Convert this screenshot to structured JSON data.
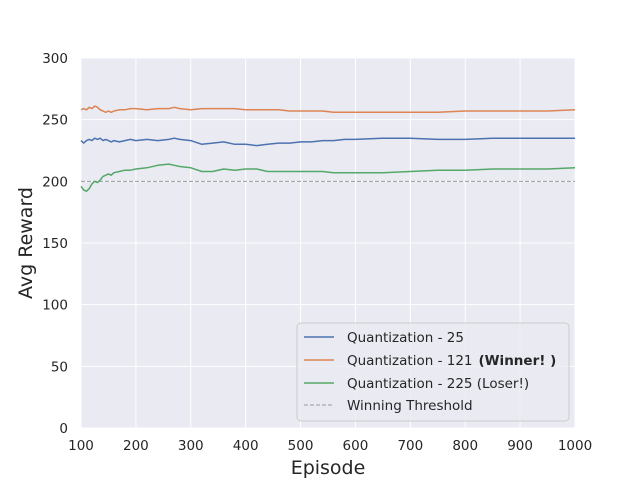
{
  "chart_data": {
    "type": "line",
    "title": "",
    "xlabel": "Episode",
    "ylabel": "Avg Reward",
    "xlim": [
      100,
      1000
    ],
    "ylim": [
      0,
      300
    ],
    "xticks": [
      100,
      200,
      300,
      400,
      500,
      600,
      700,
      800,
      900,
      1000
    ],
    "yticks": [
      0,
      50,
      100,
      150,
      200,
      250,
      300
    ],
    "grid": true,
    "legend_position": "bottom-right",
    "x": [
      100,
      105,
      110,
      115,
      120,
      125,
      130,
      135,
      140,
      145,
      150,
      155,
      160,
      170,
      180,
      190,
      200,
      220,
      240,
      260,
      270,
      280,
      300,
      320,
      340,
      360,
      380,
      400,
      420,
      440,
      460,
      480,
      500,
      520,
      540,
      560,
      580,
      600,
      650,
      700,
      750,
      800,
      850,
      900,
      950,
      1000
    ],
    "series": [
      {
        "name": "Quantization - 25",
        "color": "#4c72b0",
        "values": [
          233,
          231,
          233,
          234,
          233,
          235,
          234,
          235,
          233,
          234,
          233,
          232,
          233,
          232,
          233,
          234,
          233,
          234,
          233,
          234,
          235,
          234,
          233,
          230,
          231,
          232,
          230,
          230,
          229,
          230,
          231,
          231,
          232,
          232,
          233,
          233,
          234,
          234,
          235,
          235,
          234,
          234,
          235,
          235,
          235,
          235
        ]
      },
      {
        "name": "Quantization - 121",
        "name_suffix": "(Winner! )",
        "color": "#dd8452",
        "values": [
          258,
          259,
          258,
          260,
          259,
          261,
          260,
          258,
          257,
          256,
          257,
          256,
          257,
          258,
          258,
          259,
          259,
          258,
          259,
          259,
          260,
          259,
          258,
          259,
          259,
          259,
          259,
          258,
          258,
          258,
          258,
          257,
          257,
          257,
          257,
          256,
          256,
          256,
          256,
          256,
          256,
          257,
          257,
          257,
          257,
          258
        ]
      },
      {
        "name": "Quantization - 225 (Loser!)",
        "color": "#55a868",
        "values": [
          196,
          193,
          192,
          194,
          198,
          200,
          199,
          201,
          204,
          205,
          206,
          205,
          207,
          208,
          209,
          209,
          210,
          211,
          213,
          214,
          213,
          212,
          211,
          208,
          208,
          210,
          209,
          210,
          210,
          208,
          208,
          208,
          208,
          208,
          208,
          207,
          207,
          207,
          207,
          208,
          209,
          209,
          210,
          210,
          210,
          211
        ]
      }
    ],
    "threshold": {
      "name": "Winning Threshold",
      "value": 200,
      "color": "#999999"
    }
  }
}
